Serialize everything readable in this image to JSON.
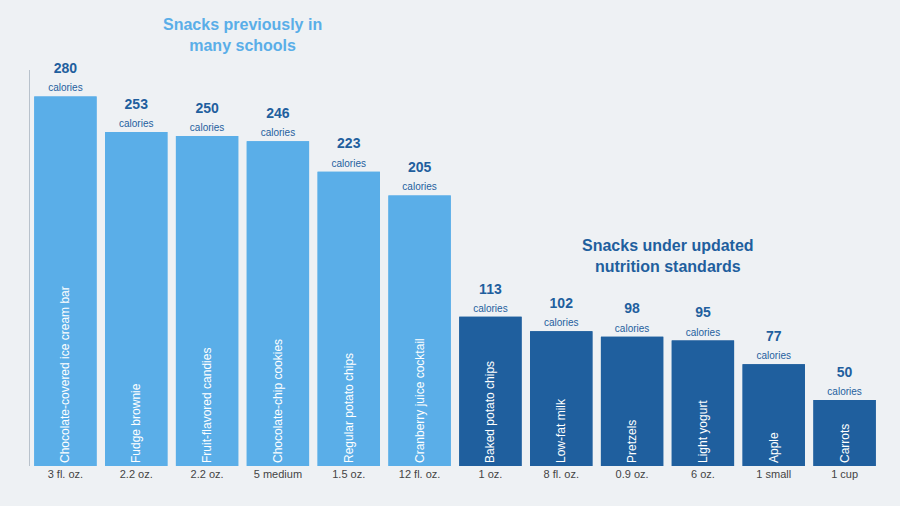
{
  "chart_data": {
    "type": "bar",
    "categories": [
      "Chocolate-covered ice cream bar",
      "Fudge brownie",
      "Fruit-flavored candies",
      "Chocolate-chip cookies",
      "Regular potato chips",
      "Cranberry juice cocktail",
      "Baked potato chips",
      "Low-fat milk",
      "Pretzels",
      "Light yogurt",
      "Apple",
      "Carrots"
    ],
    "values": [
      280,
      253,
      250,
      246,
      223,
      205,
      113,
      102,
      98,
      95,
      77,
      50
    ],
    "value_labels": [
      "280 calories",
      "253 calories",
      "250 calories",
      "246 calories",
      "223 calories",
      "205 calories",
      "113 calories",
      "102 calories",
      "98 calories",
      "95 calories",
      "77 calories",
      "50 calories"
    ],
    "servings": [
      "3 fl. oz.",
      "2.2 oz.",
      "2.2 oz.",
      "5 medium",
      "1.5 oz.",
      "12 fl. oz.",
      "1 oz.",
      "8 fl. oz.",
      "0.9 oz.",
      "6 oz.",
      "1 small",
      "1 cup"
    ],
    "colors": [
      "#5aaee8",
      "#5aaee8",
      "#5aaee8",
      "#5aaee8",
      "#5aaee8",
      "#5aaee8",
      "#1f5f9e",
      "#1f5f9e",
      "#1f5f9e",
      "#1f5f9e",
      "#1f5f9e",
      "#1f5f9e"
    ],
    "annotations": [
      "Snacks previously in many schools",
      "Snacks under updated nutrition standards"
    ],
    "ylim": [
      0,
      300
    ],
    "yticks": [],
    "grid": false,
    "data_labels": true,
    "tick_labels": "x"
  }
}
